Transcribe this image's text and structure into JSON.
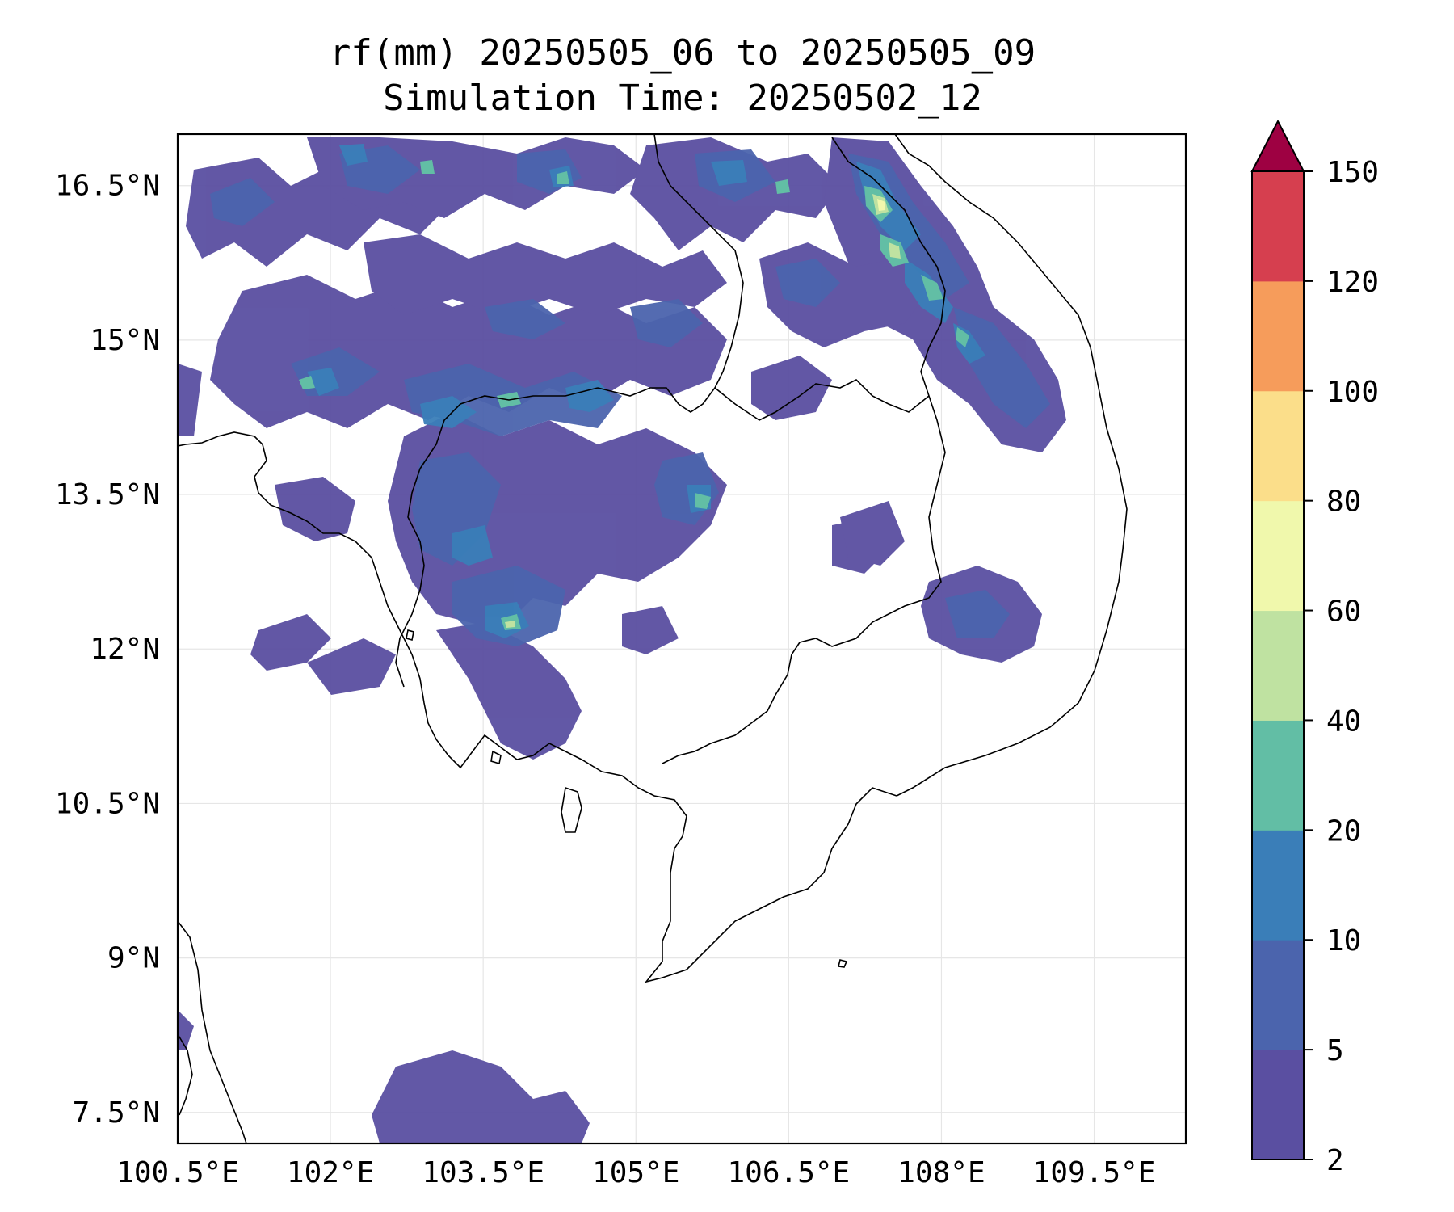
{
  "title": {
    "line1": "rf(mm) 20250505_06 to 20250505_09",
    "line2": "Simulation Time: 20250502_12"
  },
  "map": {
    "lon_ticks": [
      "100.5°E",
      "102°E",
      "103.5°E",
      "105°E",
      "106.5°E",
      "108°E",
      "109.5°E"
    ],
    "lat_ticks": [
      "16.5°N",
      "15°N",
      "13.5°N",
      "12°N",
      "10.5°N",
      "9°N",
      "7.5°N"
    ],
    "lon_values": [
      100.5,
      102,
      103.5,
      105,
      106.5,
      108,
      109.5
    ],
    "lat_values": [
      16.5,
      15,
      13.5,
      12,
      10.5,
      9,
      7.5
    ],
    "extent": {
      "lon_min": 100.5,
      "lon_max": 110.4,
      "lat_min": 7.2,
      "lat_max": 17.0
    },
    "gridlines": true,
    "coastline_color": "#000000",
    "rainfall_clusters": [
      {
        "lon": 102.3,
        "lat": 16.3,
        "level": 2
      },
      {
        "lon": 104.2,
        "lat": 16.2,
        "level": 2
      },
      {
        "lon": 105.8,
        "lat": 16.3,
        "level": 2
      },
      {
        "lon": 107.2,
        "lat": 16.4,
        "level": 5
      },
      {
        "lon": 107.1,
        "lat": 16.1,
        "level": 4
      },
      {
        "lon": 107.3,
        "lat": 15.8,
        "level": 3
      },
      {
        "lon": 107.5,
        "lat": 15.5,
        "level": 3
      },
      {
        "lon": 107.9,
        "lat": 15.2,
        "level": 3
      },
      {
        "lon": 101.8,
        "lat": 14.5,
        "level": 3
      },
      {
        "lon": 103.6,
        "lat": 14.4,
        "level": 3
      },
      {
        "lon": 104.3,
        "lat": 14.6,
        "level": 3
      },
      {
        "lon": 105.2,
        "lat": 13.5,
        "level": 3
      },
      {
        "lon": 103.4,
        "lat": 12.1,
        "level": 3
      },
      {
        "lon": 103.7,
        "lat": 12.5,
        "level": 2
      },
      {
        "lon": 102.3,
        "lat": 16.5,
        "level": 3
      },
      {
        "lon": 101.3,
        "lat": 14.7,
        "level": 2
      },
      {
        "lon": 108.1,
        "lat": 12.0,
        "level": 1
      }
    ]
  },
  "colorbar": {
    "labels": [
      "2",
      "5",
      "10",
      "20",
      "40",
      "60",
      "80",
      "100",
      "120",
      "150"
    ],
    "colors": [
      "#5a4fa1",
      "#4b64ad",
      "#3a7eb8",
      "#62bea5",
      "#bfe2a1",
      "#f0f8ac",
      "#fbde8a",
      "#f69c5b",
      "#d63f4f",
      "#9e0142"
    ],
    "extend": "max"
  }
}
